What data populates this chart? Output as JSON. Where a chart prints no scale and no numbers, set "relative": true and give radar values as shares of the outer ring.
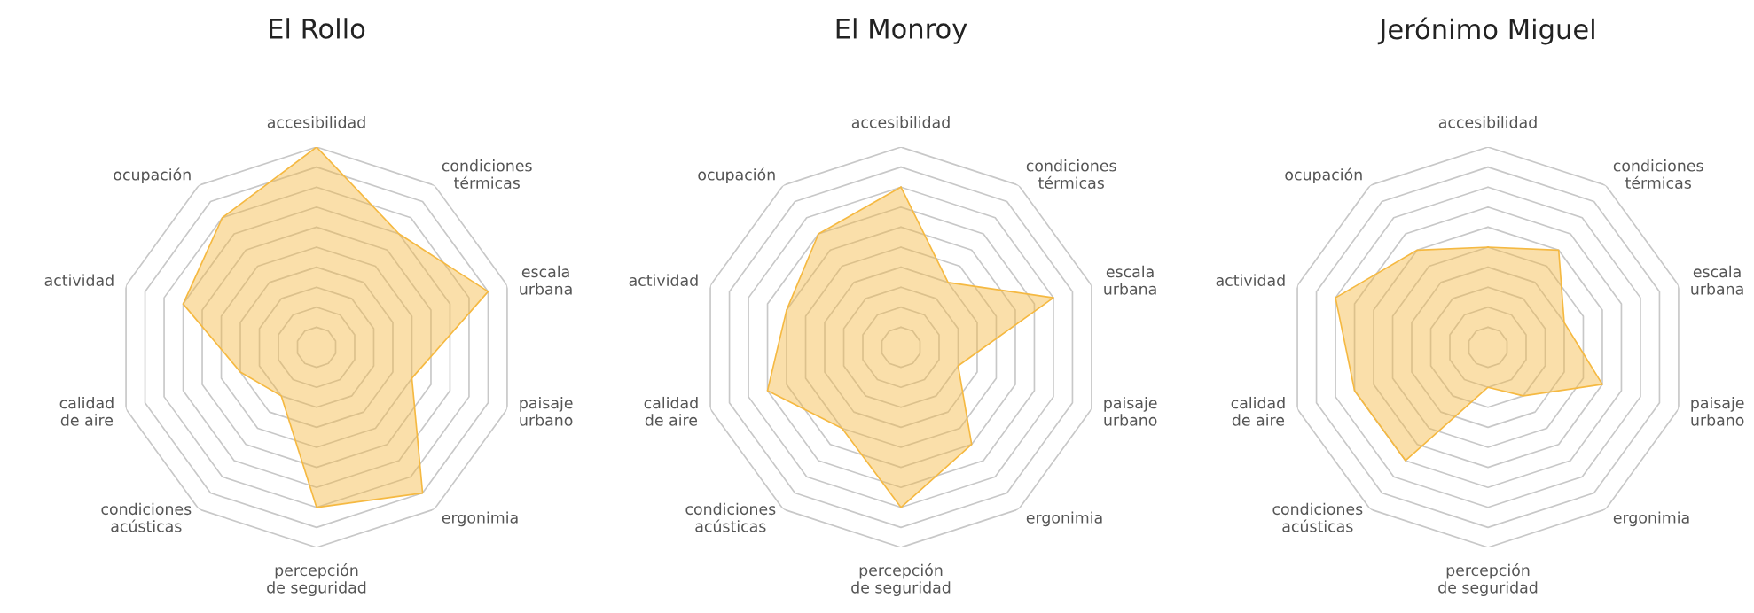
{
  "chart_data": [
    {
      "type": "radar",
      "title": "El Rollo",
      "relative": true,
      "grid": true,
      "categories": [
        "accesibilidad",
        "condiciones térmicas",
        "escala urbana",
        "paisaje urbano",
        "ergonimia",
        "percepción de seguridad",
        "condiciones acústicas",
        "calidad de aire",
        "actividad",
        "ocupación"
      ],
      "series": [
        {
          "color": "#f5b942",
          "values": [
            1.0,
            0.7,
            0.9,
            0.5,
            0.9,
            0.8,
            0.3,
            0.4,
            0.7,
            0.8
          ]
        }
      ]
    },
    {
      "type": "radar",
      "title": "El Monroy",
      "relative": true,
      "grid": true,
      "categories": [
        "accesibilidad",
        "condiciones térmicas",
        "escala urbana",
        "paisaje urbano",
        "ergonimia",
        "percepción de seguridad",
        "condiciones acústicas",
        "calidad de aire",
        "actividad",
        "ocupación"
      ],
      "series": [
        {
          "color": "#f5b942",
          "values": [
            0.8,
            0.4,
            0.8,
            0.3,
            0.6,
            0.8,
            0.5,
            0.7,
            0.6,
            0.7
          ]
        }
      ]
    },
    {
      "type": "radar",
      "title": "Jerónimo Miguel",
      "relative": true,
      "grid": true,
      "categories": [
        "accesibilidad",
        "condiciones térmicas",
        "escala urbana",
        "paisaje urbano",
        "ergonimia",
        "percepción de seguridad",
        "condiciones acústicas",
        "calidad de aire",
        "actividad",
        "ocupación"
      ],
      "series": [
        {
          "color": "#f5b942",
          "values": [
            0.5,
            0.6,
            0.4,
            0.6,
            0.3,
            0.2,
            0.7,
            0.7,
            0.8,
            0.6
          ]
        }
      ]
    }
  ]
}
